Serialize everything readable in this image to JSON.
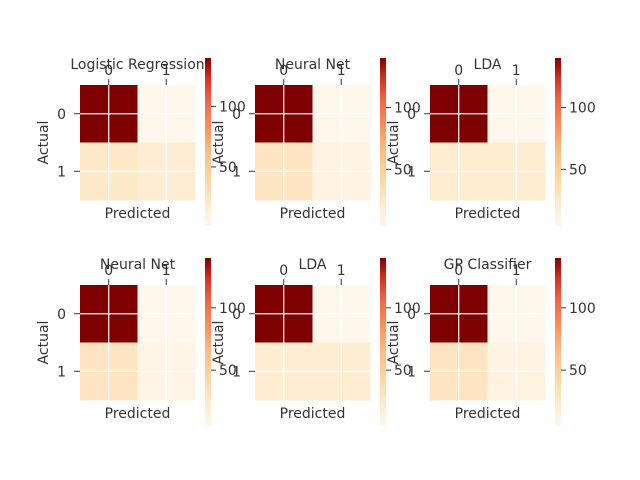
{
  "chart_data": [
    {
      "type": "heatmap",
      "title": "Logistic Regression",
      "xlabel": "Predicted",
      "ylabel": "Actual",
      "x_categories": [
        "0",
        "1"
      ],
      "y_categories": [
        "0",
        "1"
      ],
      "matrix": [
        [
          140,
          2
        ],
        [
          22,
          16
        ]
      ],
      "colorbar": {
        "label": "",
        "ticks": [
          100,
          50
        ],
        "range": [
          2,
          140
        ],
        "colormap": "OrRd"
      },
      "grid": true
    },
    {
      "type": "heatmap",
      "title": "Neural Net",
      "xlabel": "Predicted",
      "ylabel": "Actual",
      "x_categories": [
        "0",
        "1"
      ],
      "y_categories": [
        "0",
        "1"
      ],
      "matrix": [
        [
          140,
          5
        ],
        [
          28,
          10
        ]
      ],
      "colorbar": {
        "label": "",
        "ticks": [
          100,
          50
        ],
        "range": [
          5,
          140
        ],
        "colormap": "OrRd"
      },
      "grid": true
    },
    {
      "type": "heatmap",
      "title": "LDA",
      "xlabel": "Predicted",
      "ylabel": "Actual",
      "x_categories": [
        "0",
        "1"
      ],
      "y_categories": [
        "0",
        "1"
      ],
      "matrix": [
        [
          140,
          5
        ],
        [
          20,
          20
        ]
      ],
      "colorbar": {
        "label": "",
        "ticks": [
          100,
          50
        ],
        "range": [
          5,
          140
        ],
        "colormap": "OrRd"
      },
      "grid": true
    },
    {
      "type": "heatmap",
      "title": "Neural Net",
      "xlabel": "Predicted",
      "ylabel": "Actual",
      "x_categories": [
        "0",
        "1"
      ],
      "y_categories": [
        "0",
        "1"
      ],
      "matrix": [
        [
          140,
          6
        ],
        [
          30,
          10
        ]
      ],
      "colorbar": {
        "label": "",
        "ticks": [
          100,
          50
        ],
        "range": [
          6,
          140
        ],
        "colormap": "OrRd"
      },
      "grid": true
    },
    {
      "type": "heatmap",
      "title": "LDA",
      "xlabel": "Predicted",
      "ylabel": "Actual",
      "x_categories": [
        "0",
        "1"
      ],
      "y_categories": [
        "0",
        "1"
      ],
      "matrix": [
        [
          140,
          6
        ],
        [
          20,
          20
        ]
      ],
      "colorbar": {
        "label": "",
        "ticks": [
          100,
          50
        ],
        "range": [
          6,
          140
        ],
        "colormap": "OrRd"
      },
      "grid": true
    },
    {
      "type": "heatmap",
      "title": "GP Classifier",
      "xlabel": "Predicted",
      "ylabel": "Actual",
      "x_categories": [
        "0",
        "1"
      ],
      "y_categories": [
        "0",
        "1"
      ],
      "matrix": [
        [
          140,
          6
        ],
        [
          30,
          12
        ]
      ],
      "colorbar": {
        "label": "",
        "ticks": [
          100,
          50
        ],
        "range": [
          6,
          140
        ],
        "colormap": "OrRd"
      },
      "grid": true
    }
  ]
}
